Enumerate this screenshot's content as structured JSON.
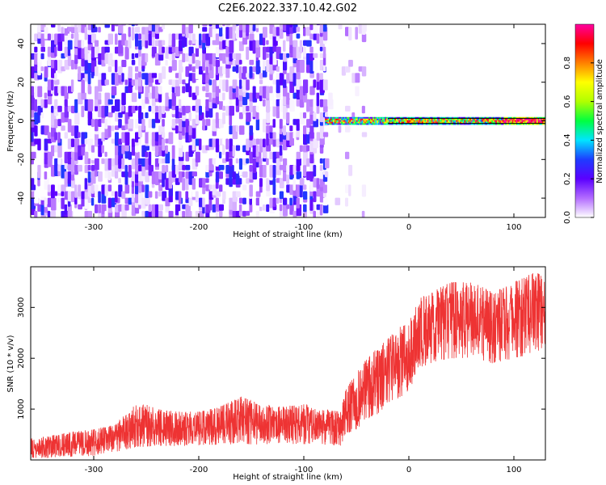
{
  "title": "C2E6.2022.337.10.42.G02",
  "chart_data": [
    {
      "type": "heatmap",
      "xlabel": "Height of straight line (km)",
      "ylabel": "Frequency (Hz)",
      "xlim": [
        -360,
        130
      ],
      "ylim": [
        -50,
        50
      ],
      "x_ticks": [
        -300,
        -200,
        -100,
        0,
        100
      ],
      "y_ticks": [
        -40,
        -20,
        0,
        20,
        40
      ],
      "x_tick_labels": [
        "-300",
        "-200",
        "-100",
        "0",
        "100"
      ],
      "y_tick_labels": [
        "-40",
        "-20",
        "0",
        "20",
        "40"
      ],
      "colorbar": {
        "label": "Normalized spectral amplitude",
        "range": [
          0.0,
          1.0
        ],
        "ticks": [
          0.0,
          0.2,
          0.4,
          0.6,
          0.8
        ],
        "tick_labels": [
          "0.0",
          "0.2",
          "0.4",
          "0.6",
          "0.8"
        ],
        "colormap": [
          "#ffffff",
          "#b36cff",
          "#5b00ff",
          "#1e3cff",
          "#00e5ff",
          "#00ff40",
          "#b0ff00",
          "#ffff00",
          "#ff8000",
          "#ff0000",
          "#ff00a0"
        ]
      },
      "regions": [
        {
          "desc": "noise",
          "x": [
            -360,
            -80
          ],
          "freq": [
            -50,
            50
          ],
          "amplitude": [
            0.0,
            0.3
          ]
        },
        {
          "desc": "sparse noise",
          "x": [
            -80,
            -40
          ],
          "freq": [
            -50,
            50
          ],
          "amplitude": [
            0.0,
            0.1
          ]
        },
        {
          "desc": "carrier",
          "x": [
            -80,
            130
          ],
          "freq": [
            -2,
            2
          ],
          "amplitude": [
            0.3,
            1.0
          ]
        }
      ],
      "grid": false,
      "colors": {
        "noise": "#7a1cff",
        "carrier": "#ff0040"
      }
    },
    {
      "type": "line",
      "xlabel": "Height of straight line (km)",
      "ylabel": "SNR (10 * v/v)",
      "xlim": [
        -360,
        130
      ],
      "ylim": [
        0,
        3800
      ],
      "x_ticks": [
        -300,
        -200,
        -100,
        0,
        100
      ],
      "y_ticks": [
        1000,
        2000,
        3000
      ],
      "x_tick_labels": [
        "-300",
        "-200",
        "-100",
        "0",
        "100"
      ],
      "y_tick_labels": [
        "1000",
        "2000",
        "3000"
      ],
      "series": [
        {
          "color": "#ee3333",
          "x": [
            -360,
            -340,
            -320,
            -300,
            -280,
            -270,
            -260,
            -250,
            -240,
            -220,
            -200,
            -180,
            -160,
            -140,
            -120,
            -100,
            -80,
            -65,
            -60,
            -50,
            -40,
            -30,
            -20,
            -10,
            0,
            10,
            20,
            40,
            60,
            80,
            100,
            120,
            130
          ],
          "low": [
            40,
            40,
            60,
            80,
            150,
            200,
            250,
            260,
            280,
            270,
            290,
            300,
            310,
            300,
            320,
            310,
            300,
            280,
            500,
            600,
            800,
            900,
            1100,
            1200,
            1300,
            1800,
            1900,
            2000,
            2000,
            1900,
            2000,
            2100,
            2200
          ],
          "high": [
            420,
            480,
            560,
            600,
            700,
            900,
            1100,
            1100,
            1000,
            950,
            950,
            1050,
            1250,
            1100,
            1050,
            1100,
            1000,
            950,
            1400,
            1700,
            2000,
            2200,
            2400,
            2600,
            2700,
            3200,
            3300,
            3500,
            3500,
            3300,
            3500,
            3700,
            3600
          ]
        }
      ],
      "grid": false
    }
  ]
}
